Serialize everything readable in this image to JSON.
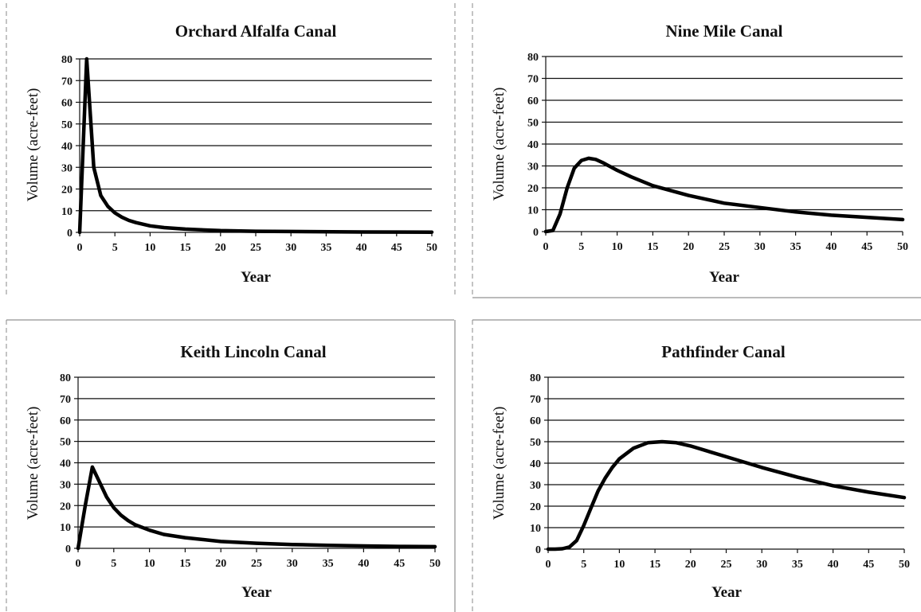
{
  "chart_data": [
    {
      "type": "line",
      "title": "Orchard Alfalfa Canal",
      "xlabel": "Year",
      "ylabel": "Volume (acre-feet)",
      "xlim": [
        0,
        50
      ],
      "ylim": [
        0,
        80
      ],
      "xticks": [
        0,
        5,
        10,
        15,
        20,
        25,
        30,
        35,
        40,
        45,
        50
      ],
      "yticks": [
        0,
        10,
        20,
        30,
        40,
        50,
        60,
        70,
        80
      ],
      "grid": true,
      "series": [
        {
          "x": [
            0,
            1,
            2,
            3,
            4,
            5,
            6,
            7,
            8,
            10,
            12,
            15,
            20,
            25,
            30,
            40,
            50
          ],
          "y": [
            0,
            80,
            30,
            17,
            12,
            9,
            7,
            5.5,
            4.5,
            3,
            2.2,
            1.5,
            0.8,
            0.5,
            0.4,
            0.2,
            0.1
          ]
        }
      ]
    },
    {
      "type": "line",
      "title": "Nine Mile Canal",
      "xlabel": "Year",
      "ylabel": "Volume (acre-feet)",
      "xlim": [
        0,
        50
      ],
      "ylim": [
        0,
        80
      ],
      "xticks": [
        0,
        5,
        10,
        15,
        20,
        25,
        30,
        35,
        40,
        45,
        50
      ],
      "yticks": [
        0,
        10,
        20,
        30,
        40,
        50,
        60,
        70,
        80
      ],
      "grid": true,
      "series": [
        {
          "x": [
            0,
            1,
            2,
            3,
            4,
            5,
            6,
            7,
            8,
            10,
            12,
            15,
            20,
            25,
            30,
            35,
            40,
            45,
            50
          ],
          "y": [
            0,
            0.5,
            8,
            20,
            29,
            32.5,
            33.5,
            33,
            31.5,
            28,
            25,
            21,
            16.5,
            13,
            11,
            9,
            7.5,
            6.5,
            5.5
          ]
        }
      ]
    },
    {
      "type": "line",
      "title": "Keith Lincoln Canal",
      "xlabel": "Year",
      "ylabel": "Volume (acre-feet)",
      "xlim": [
        0,
        50
      ],
      "ylim": [
        0,
        80
      ],
      "xticks": [
        0,
        5,
        10,
        15,
        20,
        25,
        30,
        35,
        40,
        45,
        50
      ],
      "yticks": [
        0,
        10,
        20,
        30,
        40,
        50,
        60,
        70,
        80
      ],
      "grid": true,
      "series": [
        {
          "x": [
            0,
            1,
            2,
            3,
            4,
            5,
            6,
            7,
            8,
            10,
            12,
            15,
            20,
            25,
            30,
            35,
            40,
            45,
            50
          ],
          "y": [
            0,
            20,
            38,
            31,
            24,
            19,
            15.5,
            13,
            11,
            8.5,
            6.5,
            5,
            3.2,
            2.4,
            1.8,
            1.4,
            1.1,
            0.9,
            0.8
          ]
        }
      ]
    },
    {
      "type": "line",
      "title": "Pathfinder Canal",
      "xlabel": "Year",
      "ylabel": "Volume (acre-feet)",
      "xlim": [
        0,
        50
      ],
      "ylim": [
        0,
        80
      ],
      "xticks": [
        0,
        5,
        10,
        15,
        20,
        25,
        30,
        35,
        40,
        45,
        50
      ],
      "yticks": [
        0,
        10,
        20,
        30,
        40,
        50,
        60,
        70,
        80
      ],
      "grid": true,
      "series": [
        {
          "x": [
            0,
            1,
            2,
            3,
            4,
            5,
            6,
            7,
            8,
            9,
            10,
            12,
            14,
            16,
            18,
            20,
            25,
            30,
            35,
            40,
            45,
            50
          ],
          "y": [
            0,
            0,
            0.2,
            1,
            4,
            11,
            19,
            27,
            33,
            38,
            42,
            47,
            49.5,
            50,
            49.5,
            48,
            43,
            38,
            33.5,
            29.5,
            26.5,
            24
          ]
        }
      ]
    }
  ]
}
